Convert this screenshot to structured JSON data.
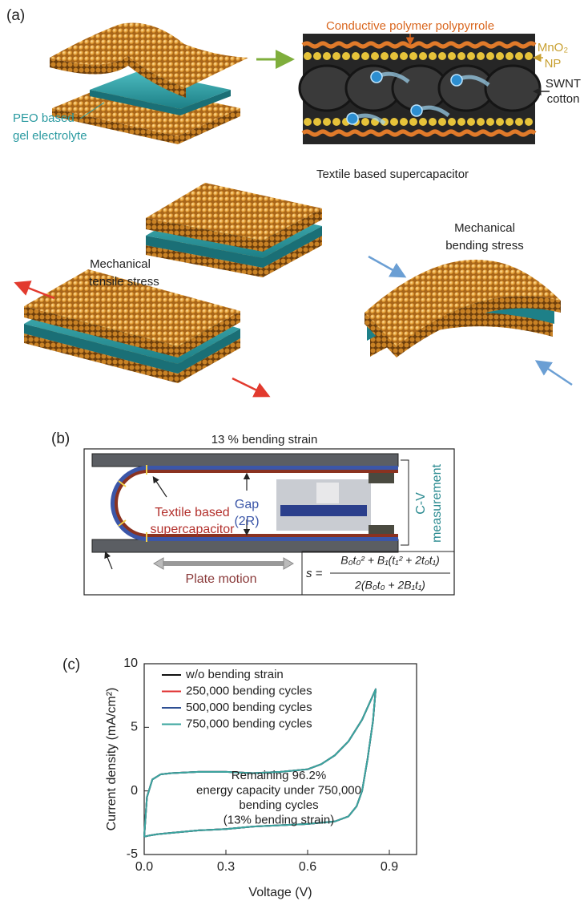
{
  "panel_a": {
    "label": "(a)",
    "polymer": "Conductive polymer polypyrrole",
    "mno2": "MnO₂",
    "np": "NP",
    "swnt": "SWNT",
    "cotton": "cotton",
    "peo_1": "PEO based",
    "peo_2": "gel electrolyte",
    "device": "Textile based supercapacitor",
    "tensile_1": "Mechanical",
    "tensile_2": "tensile stress",
    "bending_1": "Mechanical",
    "bending_2": "bending stress"
  },
  "panel_b": {
    "label": "(b)",
    "title": "13 % bending strain",
    "device_1": "Textile based",
    "device_2": "supercapacitor",
    "gap_1": "Gap",
    "gap_2": "(2R)",
    "cv_1": "C-V",
    "cv_2": "measurement",
    "motion": "Plate motion",
    "formula_lhs": "s =",
    "formula_num": "B₀t₀² + B₁(t₁² + 2t₀t₁)",
    "formula_den": "2(B₀t₀ + 2B₁t₁)"
  },
  "chart_data": {
    "type": "line",
    "panel_label": "(c)",
    "x_label": "Voltage (V)",
    "y_label": "Current density (mA/cm²)",
    "x": [
      0,
      0.01,
      0.03,
      0.06,
      0.1,
      0.2,
      0.3,
      0.4,
      0.5,
      0.6,
      0.65,
      0.7,
      0.75,
      0.8,
      0.85,
      0.84,
      0.82,
      0.8,
      0.78,
      0.75,
      0.7,
      0.6,
      0.5,
      0.4,
      0.3,
      0.2,
      0.1,
      0.05,
      0.02,
      0
    ],
    "series": [
      {
        "name": "w/o  bending strain",
        "color": "#111111",
        "values": [
          -3.6,
          -0.5,
          0.9,
          1.3,
          1.4,
          1.5,
          1.5,
          1.4,
          1.5,
          1.7,
          2.1,
          2.8,
          3.9,
          5.6,
          8.0,
          5.5,
          2.5,
          0.0,
          -1.2,
          -2.0,
          -2.4,
          -2.6,
          -2.7,
          -2.8,
          -3.0,
          -3.1,
          -3.3,
          -3.4,
          -3.5,
          -3.6
        ]
      },
      {
        "name": "250,000 bending cycles",
        "color": "#e03030",
        "values": [
          -3.6,
          -0.5,
          0.9,
          1.3,
          1.4,
          1.5,
          1.5,
          1.4,
          1.5,
          1.7,
          2.1,
          2.8,
          3.9,
          5.6,
          8.0,
          5.5,
          2.5,
          0.0,
          -1.2,
          -2.0,
          -2.4,
          -2.6,
          -2.7,
          -2.8,
          -3.0,
          -3.1,
          -3.3,
          -3.4,
          -3.5,
          -3.6
        ]
      },
      {
        "name": "500,000 bending cycles",
        "color": "#2e4f93",
        "values": [
          -3.6,
          -0.5,
          0.9,
          1.3,
          1.4,
          1.5,
          1.5,
          1.4,
          1.5,
          1.7,
          2.1,
          2.8,
          3.9,
          5.6,
          8.0,
          5.5,
          2.5,
          0.0,
          -1.2,
          -2.0,
          -2.4,
          -2.6,
          -2.7,
          -2.8,
          -3.0,
          -3.1,
          -3.3,
          -3.4,
          -3.5,
          -3.6
        ]
      },
      {
        "name": "750,000 bending cycles",
        "color": "#3aa59e",
        "values": [
          -3.6,
          -0.5,
          0.9,
          1.3,
          1.4,
          1.5,
          1.5,
          1.4,
          1.5,
          1.7,
          2.1,
          2.8,
          3.9,
          5.6,
          8.0,
          5.5,
          2.5,
          0.0,
          -1.2,
          -2.0,
          -2.4,
          -2.6,
          -2.7,
          -2.8,
          -3.0,
          -3.1,
          -3.3,
          -3.4,
          -3.5,
          -3.6
        ]
      }
    ],
    "xlim": [
      0,
      1.0
    ],
    "ylim": [
      -5,
      10
    ],
    "xticks": [
      {
        "value": 0,
        "label": "0.0"
      },
      0.3,
      0.6,
      0.9
    ],
    "yticks": [
      -5,
      0,
      5,
      10
    ],
    "annotation": [
      "Remaining 96.2%",
      "energy capacity under 750,000",
      "bending cycles",
      "(13% bending strain)"
    ],
    "legend": "upper left"
  }
}
